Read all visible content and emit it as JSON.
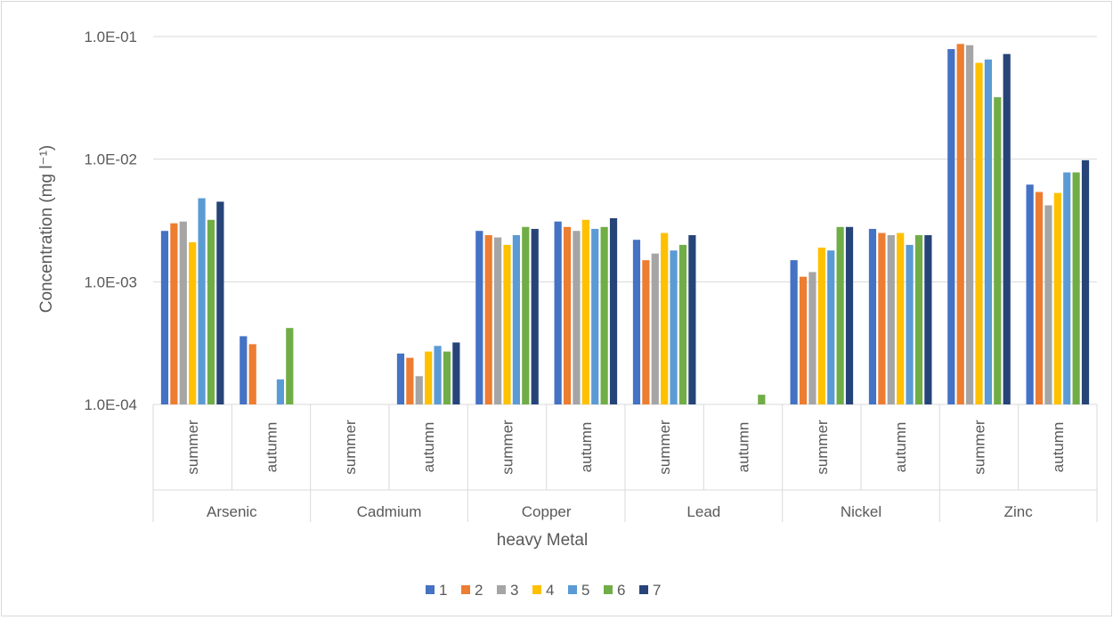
{
  "chart_data": {
    "type": "bar",
    "title": "",
    "xlabel": "heavy Metal",
    "ylabel": "Concentration (mg l⁻¹)",
    "y_scale": "log",
    "ylim": [
      0.0001,
      0.1
    ],
    "y_ticks": [
      "1.0E-01",
      "1.0E-02",
      "1.0E-03",
      "1.0E-04"
    ],
    "grid": true,
    "legend_position": "bottom",
    "groups": [
      "Arsenic",
      "Cadmium",
      "Copper",
      "Lead",
      "Nickel",
      "Zinc"
    ],
    "seasons": [
      "summer",
      "autumn"
    ],
    "categories": [
      "Arsenic summer",
      "Arsenic autumn",
      "Cadmium summer",
      "Cadmium autumn",
      "Copper summer",
      "Copper autumn",
      "Lead summer",
      "Lead autumn",
      "Nickel summer",
      "Nickel autumn",
      "Zinc summer",
      "Zinc autumn"
    ],
    "series": [
      {
        "name": "1",
        "color": "#4472c4",
        "values": [
          0.0026,
          0.00036,
          null,
          0.00026,
          0.0026,
          0.0031,
          0.0022,
          null,
          0.0015,
          0.0027,
          0.079,
          0.0062
        ]
      },
      {
        "name": "2",
        "color": "#ed7d31",
        "values": [
          0.003,
          0.00031,
          null,
          0.00024,
          0.0024,
          0.0028,
          0.0015,
          null,
          0.0011,
          0.0025,
          0.087,
          0.0054
        ]
      },
      {
        "name": "3",
        "color": "#a5a5a5",
        "values": [
          0.0031,
          null,
          null,
          0.00017,
          0.0023,
          0.0026,
          0.0017,
          null,
          0.0012,
          0.0024,
          0.085,
          0.0042
        ]
      },
      {
        "name": "4",
        "color": "#ffc000",
        "values": [
          0.0021,
          null,
          null,
          0.00027,
          0.002,
          0.0032,
          0.0025,
          null,
          0.0019,
          0.0025,
          0.061,
          0.0053
        ]
      },
      {
        "name": "5",
        "color": "#5b9bd5",
        "values": [
          0.0048,
          0.00016,
          null,
          0.0003,
          0.0024,
          0.0027,
          0.0018,
          null,
          0.0018,
          0.002,
          0.065,
          0.0078
        ]
      },
      {
        "name": "6",
        "color": "#70ad47",
        "values": [
          0.0032,
          0.00042,
          null,
          0.00027,
          0.0028,
          0.0028,
          0.002,
          0.00012,
          0.0028,
          0.0024,
          0.032,
          0.0078
        ]
      },
      {
        "name": "7",
        "color": "#264478",
        "values": [
          0.0045,
          null,
          null,
          0.00032,
          0.0027,
          0.0033,
          0.0024,
          null,
          0.0028,
          0.0024,
          0.072,
          0.0098
        ]
      }
    ]
  }
}
